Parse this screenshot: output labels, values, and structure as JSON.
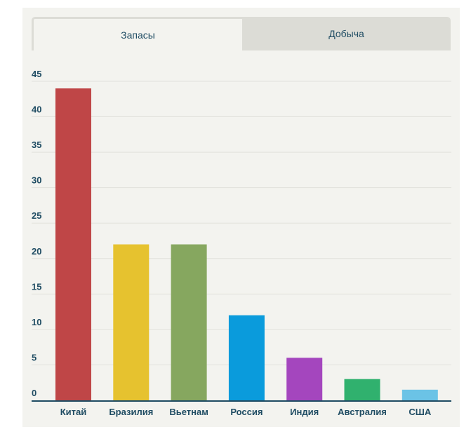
{
  "tabs": [
    {
      "label": "Запасы",
      "active": true
    },
    {
      "label": "Добыча",
      "active": false
    }
  ],
  "chart_data": {
    "type": "bar",
    "categories": [
      "Китай",
      "Бразилия",
      "Вьетнам",
      "Россия",
      "Индия",
      "Австралия",
      "США"
    ],
    "values": [
      44,
      22,
      22,
      12,
      6,
      3,
      1.5
    ],
    "colors": [
      "#bf4647",
      "#e6c22f",
      "#86a75f",
      "#0a9bdc",
      "#a446be",
      "#30b16e",
      "#6bc3e6"
    ],
    "yticks": [
      0,
      5,
      10,
      15,
      20,
      25,
      30,
      35,
      40,
      45
    ],
    "ylim": [
      0,
      45
    ],
    "grid": true,
    "legend": "none"
  }
}
